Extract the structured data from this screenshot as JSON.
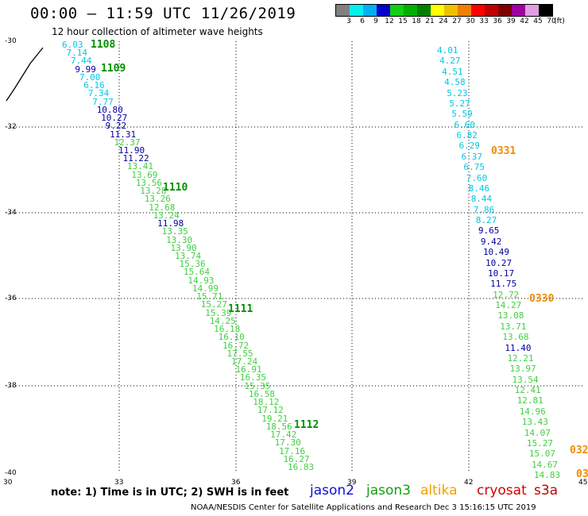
{
  "title": "00:00 – 11:59 UTC 11/26/2019",
  "subtitle": "12 hour collection of altimeter wave heights",
  "legend": {
    "swatches": [
      "#808080",
      "#00f0f0",
      "#00b0f0",
      "#0000d0",
      "#10d010",
      "#00b000",
      "#008000",
      "#ffff00",
      "#f0c000",
      "#f08000",
      "#ff0000",
      "#c00000",
      "#800000",
      "#a000a0",
      "#e0a0e0",
      "#000000"
    ],
    "labels": [
      "3",
      "6",
      "9",
      "12",
      "15",
      "18",
      "21",
      "24",
      "27",
      "30",
      "33",
      "36",
      "39",
      "42",
      "45",
      "70",
      "(ft)"
    ]
  },
  "map": {
    "lat_labels": [
      "-30",
      "-32",
      "-34",
      "-36",
      "-38",
      "-40"
    ],
    "lon_labels": [
      "30",
      "33",
      "36",
      "39",
      "42",
      "45"
    ]
  },
  "swh_colors": [
    "#00c8e6",
    "#0000a0",
    "#40d040",
    "#009000"
  ],
  "track_west": {
    "values": [
      "6.03",
      "7.14",
      "7.44",
      "9.99",
      "7.00",
      "6.16",
      "7.34",
      "7.77",
      "10.80",
      "10.27",
      "9.22",
      "11.31",
      "12.37",
      "11.90",
      "11.22",
      "13.41",
      "13.69",
      "13.56",
      "13.28",
      "13.26",
      "12.68",
      "13.24",
      "11.98",
      "13.35",
      "13.30",
      "13.90",
      "13.74",
      "15.36",
      "15.64",
      "14.93",
      "14.99",
      "15.71",
      "15.27",
      "15.39",
      "14.25",
      "16.18",
      "16.10",
      "16.72",
      "17.55",
      "17.24",
      "16.91",
      "16.35",
      "15.35",
      "16.58",
      "18.12",
      "17.12",
      "19.21",
      "18.56",
      "17.42",
      "17.30",
      "17.16",
      "16.27",
      "16.83"
    ],
    "passes": [
      "1108",
      "1109",
      "1110",
      "1111",
      "1112"
    ]
  },
  "track_east": {
    "values": [
      "4.01",
      "4.27",
      "4.51",
      "4.58",
      "5.23",
      "5.27",
      "5.59",
      "6.60",
      "6.82",
      "6.29",
      "6.37",
      "6.75",
      "7.60",
      "8.46",
      "8.44",
      "7.86",
      "8.27",
      "9.65",
      "9.42",
      "10.49",
      "10.27",
      "10.17",
      "11.75",
      "12.72",
      "14.27",
      "13.08",
      "13.71",
      "13.68",
      "11.40",
      "12.21",
      "13.97",
      "13.54",
      "12.41",
      "12.81",
      "14.96",
      "13.43",
      "14.07",
      "15.27",
      "15.07",
      "14.67",
      "14.83"
    ],
    "passes": [
      "0331",
      "0330",
      "032",
      "03"
    ]
  },
  "note": "note:  1) Time is in UTC;  2) SWH is in feet",
  "satellites": [
    {
      "name": "jason2",
      "color": "#1010d0"
    },
    {
      "name": "jason3",
      "color": "#10a010"
    },
    {
      "name": "altika",
      "color": "#f0a000"
    },
    {
      "name": "cryosat",
      "color": "#d00000"
    },
    {
      "name": "s3a",
      "color": "#c00000"
    }
  ],
  "footer": "NOAA/NESDIS Center for Satellite Applications and Research    Dec  3 15:16:15 UTC 2019"
}
